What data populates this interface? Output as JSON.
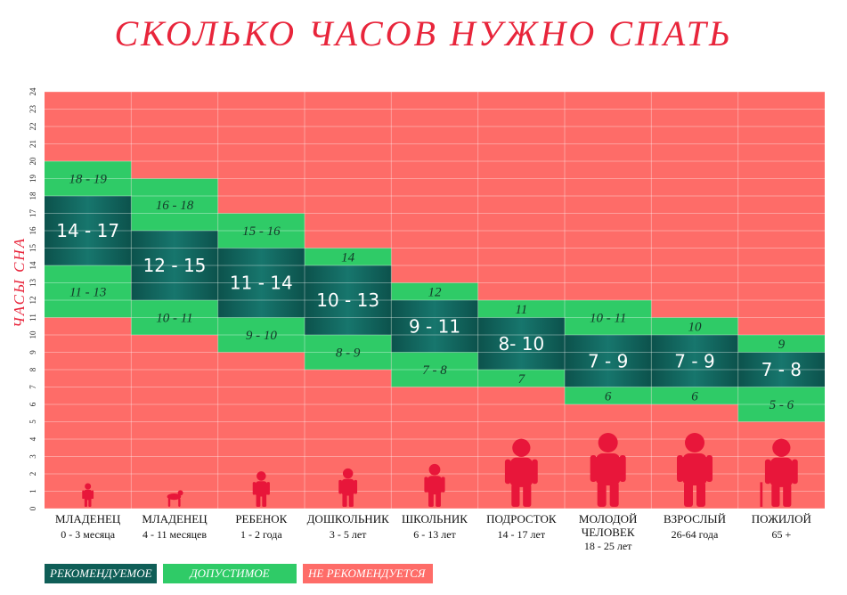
{
  "title": "СКОЛЬКО ЧАСОВ НУЖНО СПАТЬ",
  "colors": {
    "recommended": "#0f5e57",
    "acceptable": "#2fcb67",
    "not_recommended": "#fe6c68",
    "title": "#e8253b",
    "silhouette": "#e8163a"
  },
  "legend": [
    {
      "label": "РЕКОМЕНДУЕМОЕ",
      "color": "#0f5e57"
    },
    {
      "label": "ДОПУСТИМОЕ",
      "color": "#2fcb67"
    },
    {
      "label": "НЕ РЕКОМЕНДУЕТСЯ",
      "color": "#fe6c68"
    }
  ],
  "chart_data": {
    "type": "bar",
    "title": "СКОЛЬКО ЧАСОВ НУЖНО СПАТЬ",
    "ylabel": "ЧАСЫ СНА",
    "ylim": [
      0,
      24
    ],
    "yticks": [
      "0",
      "1",
      "2",
      "3",
      "4",
      "5",
      "6",
      "7",
      "8",
      "9",
      "10",
      "11",
      "12",
      "13",
      "14",
      "15",
      "16",
      "17",
      "18",
      "19",
      "20",
      "21",
      "22",
      "23",
      "24"
    ],
    "grid": true,
    "legend_position": "bottom",
    "categories": [
      {
        "name": "МЛАДЕНЕЦ",
        "age": "0 - 3 месяца",
        "icon": "infant-icon"
      },
      {
        "name": "МЛАДЕНЕЦ",
        "age": "4 - 11 месяцев",
        "icon": "crawling-baby-icon"
      },
      {
        "name": "РЕБЕНОК",
        "age": "1 - 2 года",
        "icon": "toddler-icon"
      },
      {
        "name": "ДОШКОЛЬНИК",
        "age": "3 - 5 лет",
        "icon": "preschooler-icon"
      },
      {
        "name": "ШКОЛЬНИК",
        "age": "6 - 13 лет",
        "icon": "schoolchild-icon"
      },
      {
        "name": "ПОДРОСТОК",
        "age": "14 - 17 лет",
        "icon": "teenager-icon"
      },
      {
        "name": "МОЛОДОЙ ЧЕЛОВЕК",
        "age": "18 - 25 лет",
        "icon": "young-adult-icon"
      },
      {
        "name": "ВЗРОСЛЫЙ",
        "age": "26-64 года",
        "icon": "adult-icon"
      },
      {
        "name": "ПОЖИЛОЙ",
        "age": "65 +",
        "icon": "elderly-icon"
      }
    ],
    "series": [
      {
        "name": "ДОПУСТИМОЕ",
        "values": [
          [
            11,
            20
          ],
          [
            10,
            19
          ],
          [
            9,
            17
          ],
          [
            8,
            15
          ],
          [
            7,
            13
          ],
          [
            7,
            12
          ],
          [
            6,
            12
          ],
          [
            6,
            11
          ],
          [
            5,
            10
          ]
        ]
      },
      {
        "name": "РЕКОМЕНДУЕМОЕ",
        "values": [
          [
            14,
            18
          ],
          [
            12,
            16
          ],
          [
            11,
            15
          ],
          [
            10,
            14
          ],
          [
            9,
            12
          ],
          [
            8,
            11
          ],
          [
            7,
            10
          ],
          [
            7,
            10
          ],
          [
            7,
            9
          ]
        ]
      }
    ],
    "labels": {
      "recommended": [
        "14 - 17",
        "12 - 15",
        "11 - 14",
        "10 - 13",
        "9 - 11",
        "8- 10",
        "7 - 9",
        "7 - 9",
        "7 - 8"
      ],
      "acceptable_upper": [
        "18 - 19",
        "16 - 18",
        "15 - 16",
        "14",
        "12",
        "11",
        "10 - 11",
        "10",
        "9"
      ],
      "acceptable_lower": [
        "11 - 13",
        "10 - 11",
        "9 - 10",
        "8 - 9",
        "7 - 8",
        "7",
        "6",
        "6",
        "5 - 6"
      ]
    }
  }
}
